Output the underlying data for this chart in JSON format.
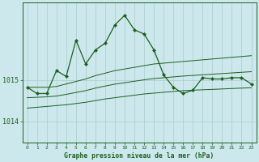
{
  "title": "Graphe pression niveau de la mer (hPa)",
  "background_color": "#cce8ec",
  "grid_color": "#aacccc",
  "line_color": "#1e5e1e",
  "ytick_labels": [
    "1014",
    "1015"
  ],
  "yticks": [
    1014,
    1015
  ],
  "ylim": [
    1013.55,
    1016.85
  ],
  "xlim": [
    -0.5,
    23.5
  ],
  "main_line": [
    1014.82,
    1014.67,
    1014.67,
    1015.22,
    1015.08,
    1015.95,
    1015.38,
    1015.72,
    1015.88,
    1016.32,
    1016.55,
    1016.2,
    1016.1,
    1015.72,
    1015.12,
    1014.82,
    1014.67,
    1014.75,
    1015.05,
    1015.02,
    1015.02,
    1015.05,
    1015.05,
    1014.9
  ],
  "upper_band": [
    1014.82,
    1014.82,
    1014.82,
    1014.84,
    1014.9,
    1014.96,
    1015.02,
    1015.1,
    1015.16,
    1015.22,
    1015.26,
    1015.3,
    1015.34,
    1015.38,
    1015.4,
    1015.42,
    1015.44,
    1015.46,
    1015.48,
    1015.5,
    1015.52,
    1015.54,
    1015.56,
    1015.58
  ],
  "lower_band": [
    1014.32,
    1014.34,
    1014.36,
    1014.38,
    1014.4,
    1014.43,
    1014.46,
    1014.5,
    1014.54,
    1014.57,
    1014.6,
    1014.63,
    1014.66,
    1014.68,
    1014.7,
    1014.72,
    1014.74,
    1014.75,
    1014.76,
    1014.77,
    1014.78,
    1014.79,
    1014.8,
    1014.81
  ],
  "mid_band": [
    1014.57,
    1014.58,
    1014.59,
    1014.61,
    1014.65,
    1014.695,
    1014.74,
    1014.8,
    1014.85,
    1014.895,
    1014.93,
    1014.965,
    1015.0,
    1015.03,
    1015.05,
    1015.07,
    1015.09,
    1015.105,
    1015.12,
    1015.135,
    1015.15,
    1015.165,
    1015.18,
    1015.195
  ]
}
